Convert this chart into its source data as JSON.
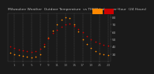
{
  "title": "Milwaukee Weather  Outdoor Temperature  vs THSW Index  per Hour  (24 Hours)",
  "background_color": "#1a1a1a",
  "plot_bg_color": "#1a1a1a",
  "legend_temp_color": "#cc0000",
  "legend_thsw_color": "#ff8800",
  "hours": [
    0,
    1,
    2,
    3,
    4,
    5,
    6,
    7,
    8,
    9,
    10,
    11,
    12,
    13,
    14,
    15,
    16,
    17,
    18,
    19,
    20,
    21,
    22,
    23
  ],
  "temp_f": [
    40,
    38,
    36,
    35,
    34,
    33,
    34,
    37,
    43,
    51,
    58,
    63,
    67,
    70,
    71,
    68,
    64,
    59,
    54,
    50,
    47,
    44,
    42,
    41
  ],
  "thsw": [
    32,
    30,
    28,
    27,
    26,
    25,
    26,
    30,
    40,
    52,
    62,
    70,
    76,
    80,
    79,
    70,
    60,
    50,
    43,
    38,
    34,
    31,
    29,
    28
  ],
  "ylim": [
    20,
    85
  ],
  "xlim": [
    -0.5,
    23.5
  ],
  "ylabel_color": "#aaaaaa",
  "tick_color": "#888888",
  "title_color": "#bbbbbb",
  "title_fontsize": 3.2,
  "tick_fontsize": 3.0,
  "dot_size": 1.5,
  "grid_color": "#555555",
  "xticks": [
    1,
    3,
    5,
    7,
    9,
    11,
    13,
    15,
    17,
    19,
    21,
    23
  ],
  "yticks": [
    30,
    40,
    50,
    60,
    70,
    80
  ]
}
